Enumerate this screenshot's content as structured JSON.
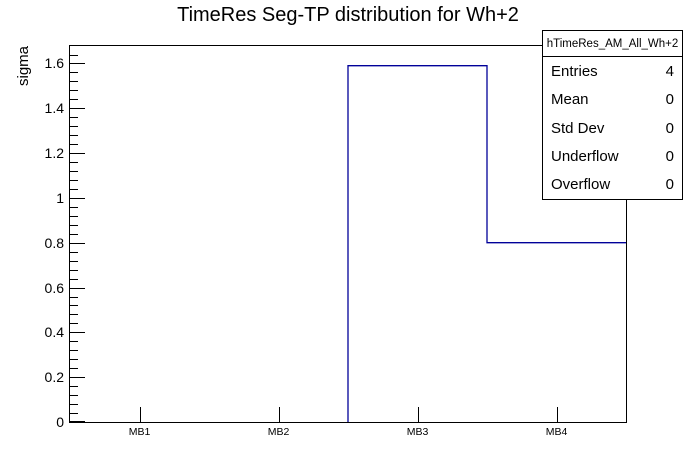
{
  "title": "TimeRes Seg-TP distribution for Wh+2",
  "y_axis_title": "sigma",
  "stats_box": {
    "header": "hTimeRes_AM_All_Wh+2",
    "rows": [
      {
        "label": "Entries",
        "value": "4"
      },
      {
        "label": "Mean",
        "value": "0"
      },
      {
        "label": "Std Dev",
        "value": "0"
      },
      {
        "label": "Underflow",
        "value": "0"
      },
      {
        "label": "Overflow",
        "value": "0"
      }
    ]
  },
  "colors": {
    "histogram_line": "#000099",
    "frame_line": "#000000",
    "background": "#ffffff",
    "text": "#000000"
  },
  "chart_data": {
    "type": "bar",
    "subtype": "step-histogram",
    "title": "TimeRes Seg-TP distribution for Wh+2",
    "categories": [
      "MB1",
      "MB2",
      "MB3",
      "MB4"
    ],
    "values": [
      0,
      0,
      1.59,
      0.8
    ],
    "xlabel": "",
    "ylabel": "sigma",
    "ylim": [
      0,
      1.678
    ],
    "y_major_tick_step": 0.2,
    "y_minor_tick_step": 0.04,
    "y_tick_labels": [
      "0",
      "0.2",
      "0.4",
      "0.6",
      "0.8",
      "1",
      "1.2",
      "1.4",
      "1.6"
    ],
    "grid": false,
    "legend": false,
    "stats": {
      "entries": 4,
      "mean": 0,
      "std_dev": 0,
      "underflow": 0,
      "overflow": 0
    }
  }
}
